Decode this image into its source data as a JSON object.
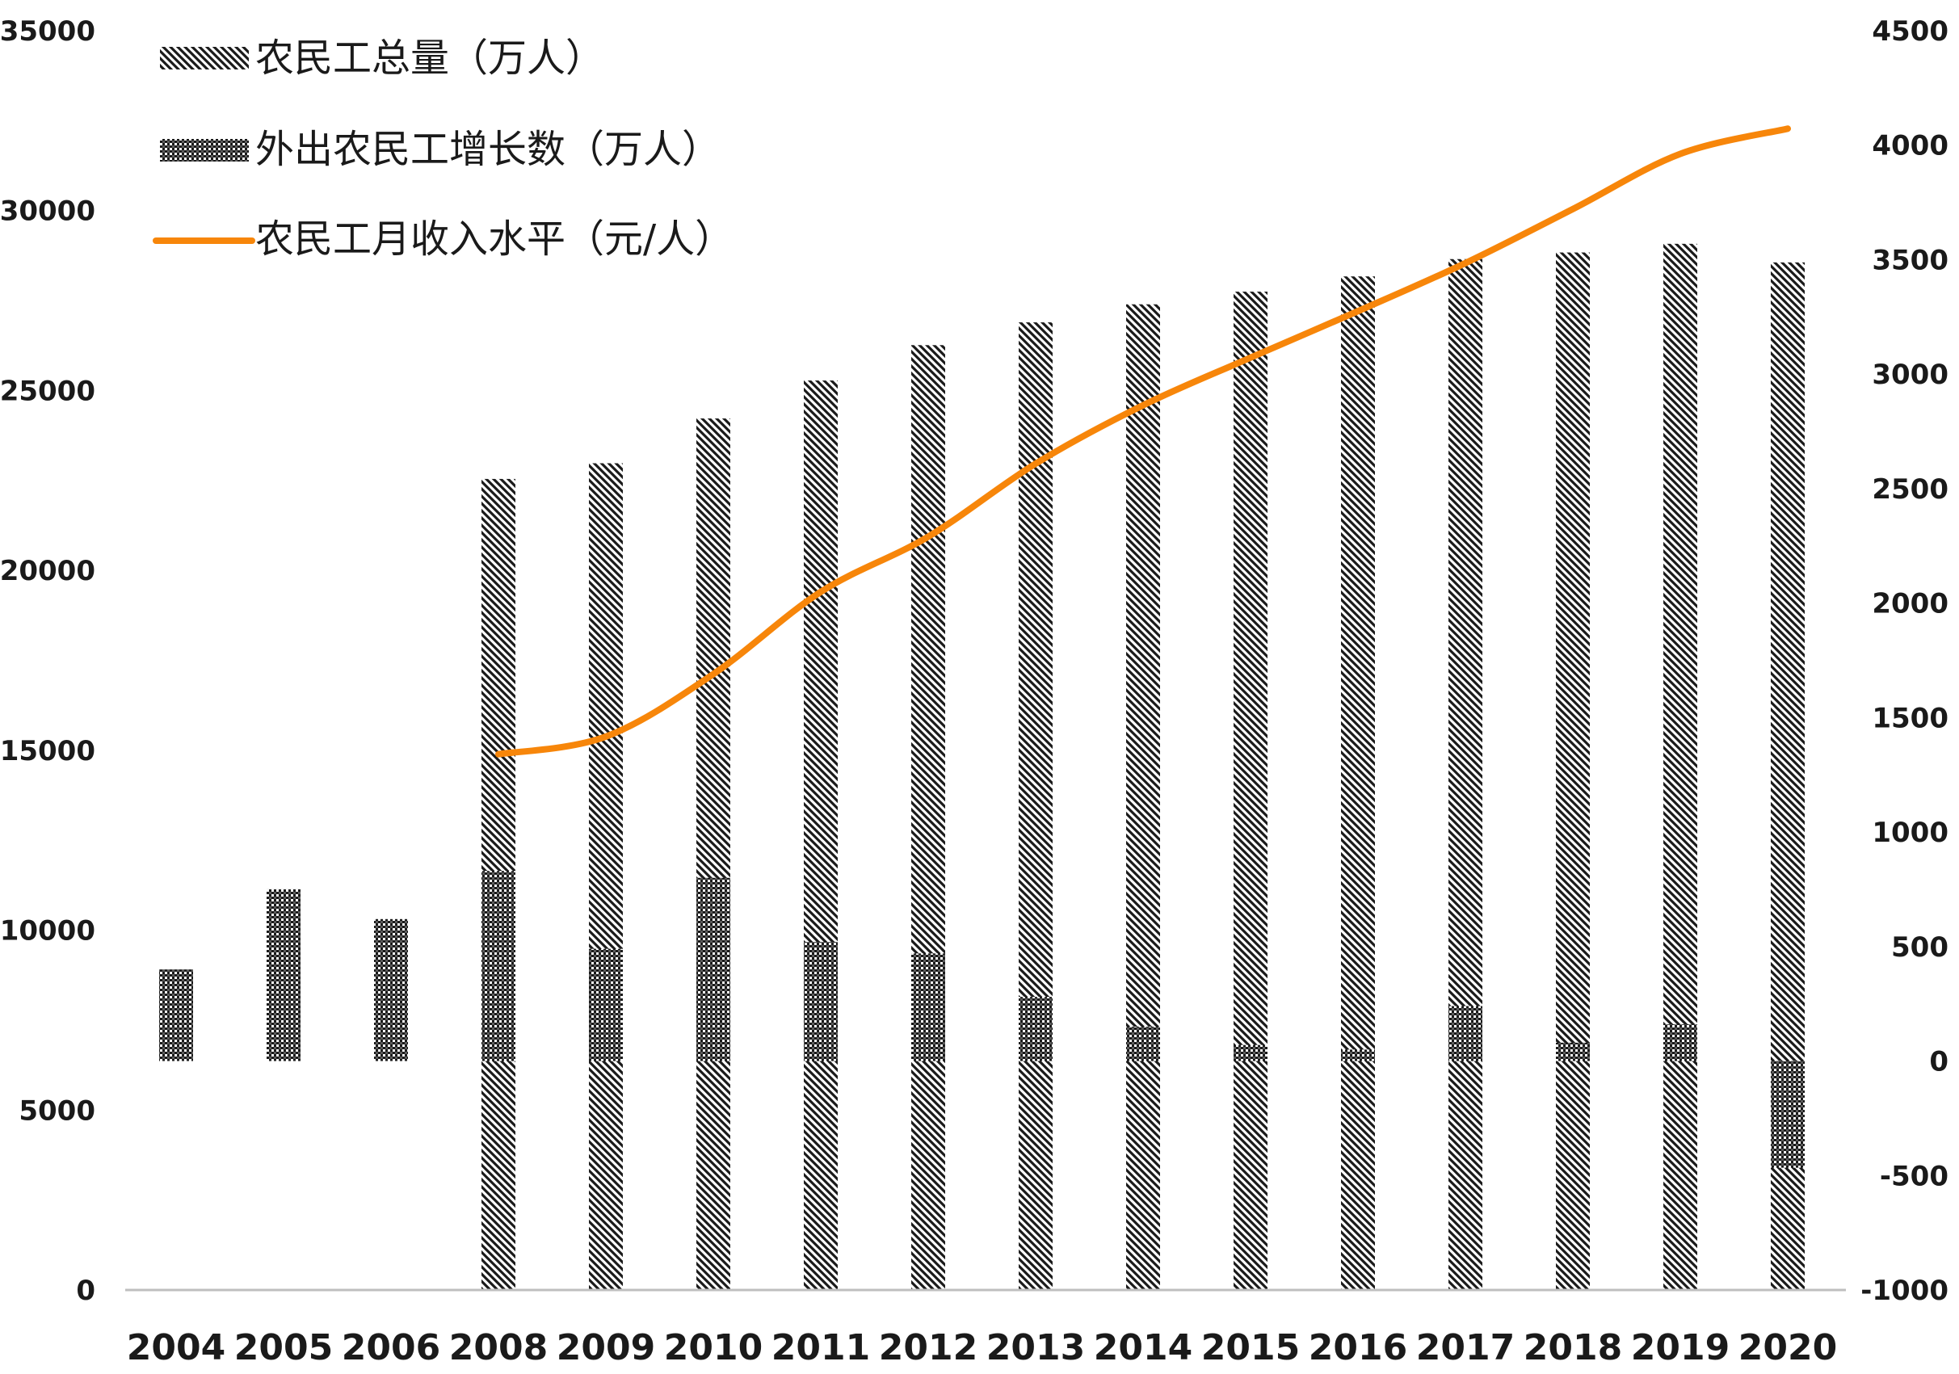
{
  "chart_data": {
    "type": "bar",
    "title": "",
    "categories": [
      "2004",
      "2005",
      "2006",
      "2008",
      "2009",
      "2010",
      "2011",
      "2012",
      "2013",
      "2014",
      "2015",
      "2016",
      "2017",
      "2018",
      "2019",
      "2020"
    ],
    "series": [
      {
        "name": "农民工总量（万人）",
        "kind": "bar",
        "axis": "left",
        "pattern": "diagonal-hatch",
        "values": [
          null,
          null,
          null,
          22542,
          22978,
          24223,
          25278,
          26261,
          26894,
          27395,
          27747,
          28171,
          28652,
          28836,
          29077,
          28560
        ]
      },
      {
        "name": "外出农民工增长数（万人）",
        "kind": "bar",
        "axis": "right",
        "pattern": "dense-dots",
        "values": [
          400,
          750,
          620,
          830,
          490,
          800,
          520,
          470,
          280,
          150,
          70,
          50,
          240,
          80,
          160,
          -466
        ]
      },
      {
        "name": "农民工月收入水平（元/人）",
        "kind": "line",
        "axis": "right",
        "color": "#F7860A",
        "values": [
          null,
          null,
          null,
          1340,
          1417,
          1690,
          2049,
          2290,
          2609,
          2864,
          3072,
          3275,
          3485,
          3721,
          3962,
          4072
        ]
      }
    ],
    "left_axis": {
      "min": 0,
      "max": 35000,
      "step": 5000,
      "ticks": [
        "0",
        "5000",
        "10000",
        "15000",
        "20000",
        "25000",
        "30000",
        "35000"
      ]
    },
    "right_axis": {
      "min": -1000,
      "max": 4500,
      "step": 500,
      "ticks": [
        "-1000",
        "-500",
        "0",
        "500",
        "1000",
        "1500",
        "2000",
        "2500",
        "3000",
        "3500",
        "4000",
        "4500"
      ]
    },
    "legend": {
      "position": "top-left"
    },
    "grid": false,
    "colors": {
      "line": "#F7860A",
      "bars": "#1a1a1a",
      "axis": "#bfbfbf"
    }
  }
}
